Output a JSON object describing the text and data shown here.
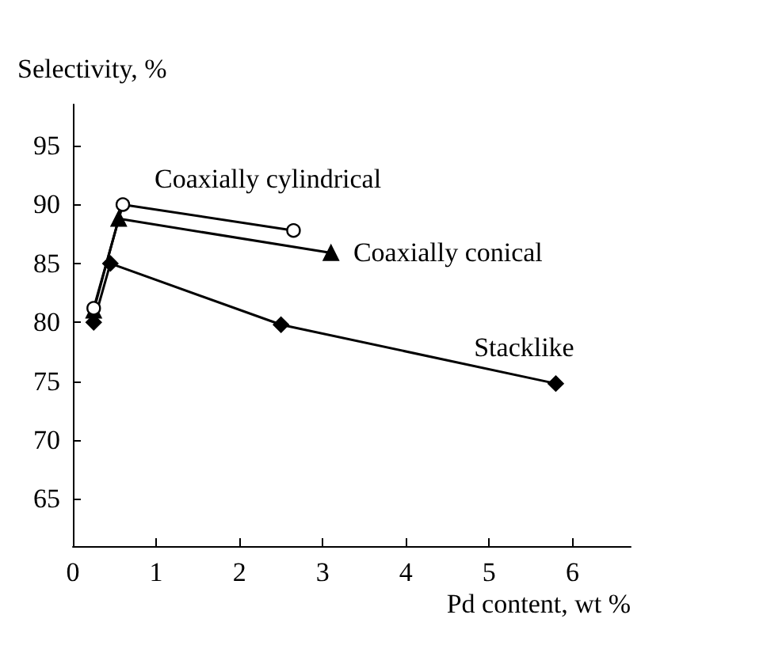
{
  "chart_data": {
    "type": "line",
    "xlabel": "Pd content, wt %",
    "ylabel": "Selectivity, %",
    "xlim": [
      0,
      6.7
    ],
    "xticks": [
      0,
      1,
      2,
      3,
      4,
      5,
      6
    ],
    "ylim": [
      61,
      98.5
    ],
    "yticks": [
      65,
      70,
      75,
      80,
      85,
      90,
      95
    ],
    "grid": false,
    "legend": false,
    "series": [
      {
        "name": "Coaxially cylindrical",
        "color": "#000000",
        "marker": "circle",
        "x": [
          0.25,
          0.6,
          2.65
        ],
        "values": [
          81.2,
          90,
          87.8
        ]
      },
      {
        "name": "Coaxially conical",
        "color": "#000000",
        "marker": "triangle",
        "x": [
          0.25,
          0.55,
          3.1
        ],
        "values": [
          81,
          88.8,
          85.9
        ]
      },
      {
        "name": "Stacklike",
        "color": "#000000",
        "marker": "diamond",
        "x": [
          0.25,
          0.45,
          2.5,
          5.8
        ],
        "values": [
          80,
          85,
          79.8,
          74.8
        ]
      }
    ]
  }
}
